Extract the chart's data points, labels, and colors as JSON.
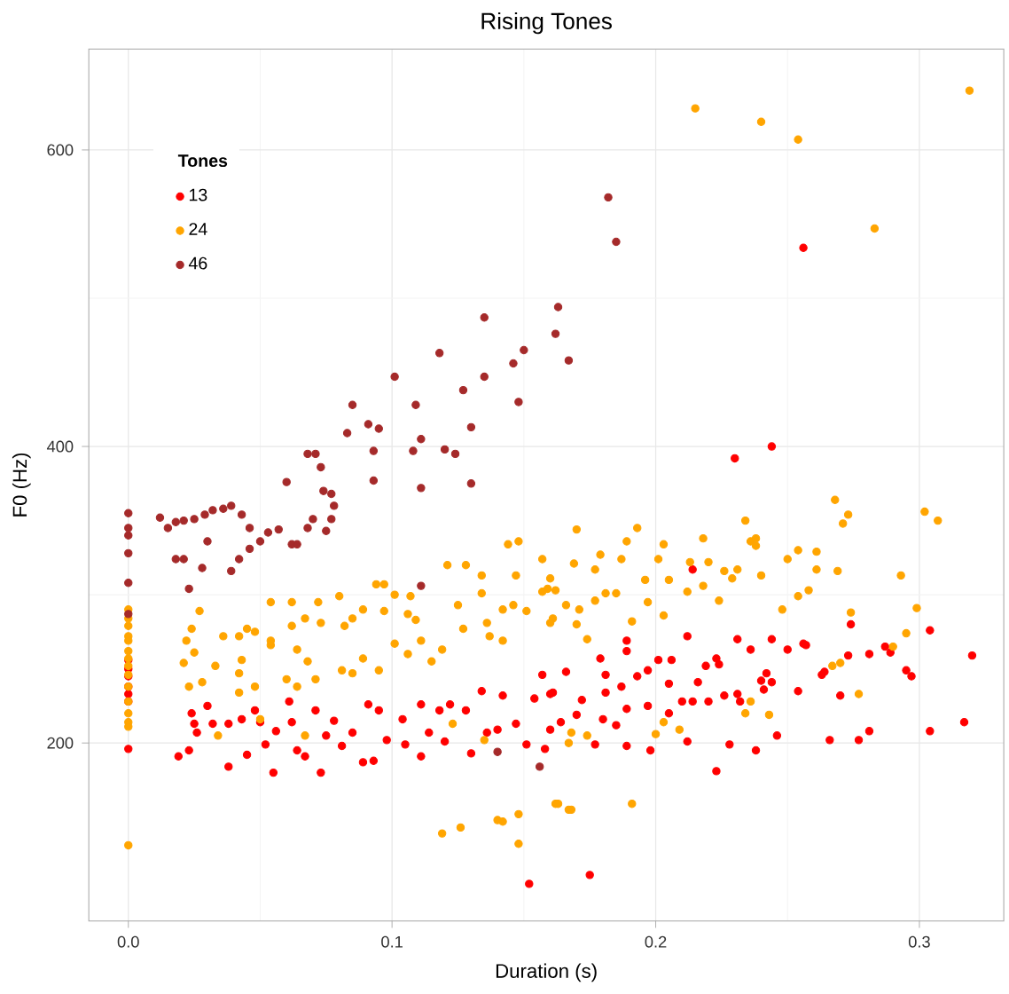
{
  "chart_data": {
    "type": "scatter",
    "title": "Rising Tones",
    "xlabel": "Duration (s)",
    "ylabel": "F0 (Hz)",
    "legend_title": "Tones",
    "legend": "top left",
    "grid": true,
    "marker": "circle",
    "xlim": [
      -0.015,
      0.332
    ],
    "ylim": [
      80,
      668
    ],
    "xticks": [
      {
        "value": 0,
        "label": "0.0"
      },
      0.1,
      0.2,
      0.3
    ],
    "yticks": [
      200,
      400,
      600
    ],
    "series": [
      {
        "name": "13",
        "color": "#ff0000",
        "x": [
          0,
          0,
          0,
          0,
          0,
          0,
          0,
          0.019,
          0.023,
          0.024,
          0.025,
          0.026,
          0.03,
          0.032,
          0.038,
          0.038,
          0.043,
          0.045,
          0.048,
          0.05,
          0.052,
          0.055,
          0.056,
          0.061,
          0.062,
          0.064,
          0.067,
          0.071,
          0.073,
          0.075,
          0.078,
          0.081,
          0.085,
          0.089,
          0.091,
          0.093,
          0.095,
          0.098,
          0.104,
          0.105,
          0.111,
          0.111,
          0.114,
          0.118,
          0.12,
          0.122,
          0.128,
          0.13,
          0.134,
          0.136,
          0.14,
          0.142,
          0.147,
          0.151,
          0.152,
          0.154,
          0.157,
          0.16,
          0.161,
          0.158,
          0.16,
          0.166,
          0.164,
          0.17,
          0.172,
          0.175,
          0.177,
          0.179,
          0.181,
          0.181,
          0.18,
          0.185,
          0.187,
          0.189,
          0.189,
          0.189,
          0.189,
          0.193,
          0.197,
          0.197,
          0.198,
          0.201,
          0.205,
          0.205,
          0.206,
          0.21,
          0.212,
          0.212,
          0.214,
          0.214,
          0.216,
          0.219,
          0.22,
          0.223,
          0.223,
          0.224,
          0.226,
          0.228,
          0.231,
          0.231,
          0.232,
          0.236,
          0.238,
          0.24,
          0.241,
          0.242,
          0.244,
          0.244,
          0.246,
          0.25,
          0.254,
          0.256,
          0.257,
          0.263,
          0.264,
          0.266,
          0.27,
          0.273,
          0.274,
          0.277,
          0.281,
          0.281,
          0.287,
          0.289,
          0.295,
          0.297,
          0.304,
          0.304,
          0.317,
          0.32,
          0.256,
          0.23,
          0.244
        ],
        "values": [
          256,
          250,
          245,
          238,
          233,
          228,
          196,
          191,
          195,
          220,
          213,
          207,
          225,
          213,
          184,
          213,
          216,
          192,
          222,
          214,
          199,
          180,
          208,
          228,
          214,
          195,
          191,
          222,
          180,
          205,
          215,
          198,
          207,
          187,
          226,
          188,
          222,
          202,
          216,
          199,
          191,
          226,
          207,
          222,
          201,
          226,
          222,
          193,
          235,
          207,
          209,
          232,
          213,
          199,
          105,
          230,
          246,
          209,
          234,
          196,
          233,
          248,
          214,
          219,
          229,
          111,
          199,
          257,
          246,
          234,
          216,
          212,
          238,
          269,
          262,
          223,
          198,
          245,
          249,
          225,
          195,
          256,
          240,
          220,
          256,
          228,
          201,
          272,
          317,
          228,
          241,
          252,
          228,
          181,
          257,
          253,
          232,
          199,
          270,
          233,
          228,
          263,
          195,
          242,
          236,
          247,
          270,
          241,
          205,
          263,
          235,
          267,
          266,
          246,
          248,
          202,
          232,
          259,
          280,
          202,
          260,
          208,
          265,
          261,
          249,
          245,
          276,
          208,
          214,
          259,
          534,
          392,
          400
        ]
      },
      {
        "name": "24",
        "color": "#ffa500",
        "x": [
          0,
          0,
          0,
          0,
          0,
          0,
          0,
          0,
          0,
          0,
          0,
          0,
          0,
          0,
          0,
          0.024,
          0.027,
          0.022,
          0.021,
          0.023,
          0.028,
          0.025,
          0.033,
          0.036,
          0.042,
          0.045,
          0.048,
          0.043,
          0.042,
          0.048,
          0.042,
          0.054,
          0.054,
          0.054,
          0.06,
          0.062,
          0.062,
          0.067,
          0.064,
          0.068,
          0.064,
          0.071,
          0.072,
          0.073,
          0.08,
          0.082,
          0.085,
          0.081,
          0.085,
          0.089,
          0.094,
          0.097,
          0.089,
          0.095,
          0.097,
          0.101,
          0.101,
          0.106,
          0.107,
          0.109,
          0.106,
          0.111,
          0.115,
          0.119,
          0.121,
          0.128,
          0.125,
          0.127,
          0.134,
          0.134,
          0.136,
          0.137,
          0.142,
          0.142,
          0.146,
          0.147,
          0.148,
          0.144,
          0.151,
          0.157,
          0.159,
          0.157,
          0.161,
          0.119,
          0.126,
          0.14,
          0.142,
          0.148,
          0.148,
          0.162,
          0.123,
          0.135,
          0.05,
          0.034,
          0.067,
          0.162,
          0.169,
          0.17,
          0.16,
          0.166,
          0.171,
          0.16,
          0.17,
          0.174,
          0.177,
          0.179,
          0.177,
          0.181,
          0.185,
          0.187,
          0.189,
          0.191,
          0.193,
          0.196,
          0.197,
          0.201,
          0.203,
          0.203,
          0.205,
          0.212,
          0.213,
          0.218,
          0.218,
          0.22,
          0.224,
          0.226,
          0.229,
          0.231,
          0.234,
          0.236,
          0.238,
          0.238,
          0.24,
          0.248,
          0.25,
          0.254,
          0.254,
          0.258,
          0.261,
          0.261,
          0.269,
          0.271,
          0.273,
          0.274,
          0.267,
          0.27,
          0.277,
          0.293,
          0.295,
          0.299,
          0.302,
          0.307,
          0.29,
          0.236,
          0.234,
          0.243,
          0.203,
          0.209,
          0.2,
          0.191,
          0.163,
          0.167,
          0.168,
          0.167,
          0.174,
          0.168,
          0.215,
          0.24,
          0.254,
          0.283,
          0.319,
          0.268
        ],
        "values": [
          290,
          284,
          279,
          272,
          269,
          262,
          257,
          252,
          246,
          238,
          228,
          220,
          214,
          211,
          131,
          277,
          289,
          269,
          254,
          238,
          241,
          261,
          252,
          272,
          272,
          277,
          275,
          256,
          247,
          238,
          234,
          295,
          266,
          269,
          243,
          295,
          279,
          284,
          263,
          255,
          238,
          243,
          295,
          281,
          299,
          279,
          284,
          249,
          247,
          257,
          307,
          307,
          290,
          249,
          289,
          267,
          300,
          287,
          299,
          283,
          260,
          269,
          255,
          263,
          320,
          320,
          293,
          277,
          313,
          301,
          281,
          272,
          290,
          269,
          293,
          313,
          336,
          334,
          289,
          324,
          304,
          302,
          284,
          139,
          143,
          148,
          147,
          152,
          132,
          159,
          213,
          202,
          216,
          205,
          205,
          303,
          321,
          344,
          311,
          293,
          290,
          281,
          280,
          270,
          317,
          327,
          296,
          301,
          301,
          324,
          336,
          282,
          345,
          310,
          295,
          324,
          334,
          286,
          310,
          302,
          322,
          338,
          306,
          322,
          296,
          316,
          311,
          317,
          350,
          336,
          338,
          333,
          313,
          290,
          324,
          299,
          330,
          303,
          329,
          317,
          316,
          348,
          354,
          288,
          252,
          254,
          233,
          313,
          274,
          291,
          356,
          350,
          265,
          228,
          220,
          219,
          214,
          209,
          206,
          159,
          159,
          155,
          155,
          200,
          205,
          207,
          628,
          619,
          607,
          547,
          640,
          364
        ]
      },
      {
        "name": "46",
        "color": "#a52a2a",
        "x": [
          0,
          0,
          0,
          0,
          0,
          0,
          0.012,
          0.015,
          0.018,
          0.021,
          0.025,
          0.029,
          0.032,
          0.036,
          0.039,
          0.043,
          0.046,
          0.018,
          0.021,
          0.023,
          0.028,
          0.03,
          0.039,
          0.042,
          0.046,
          0.05,
          0.053,
          0.057,
          0.062,
          0.064,
          0.068,
          0.07,
          0.075,
          0.077,
          0.078,
          0.06,
          0.068,
          0.071,
          0.073,
          0.074,
          0.077,
          0.083,
          0.085,
          0.091,
          0.093,
          0.093,
          0.095,
          0.101,
          0.108,
          0.109,
          0.111,
          0.111,
          0.111,
          0.118,
          0.12,
          0.124,
          0.127,
          0.13,
          0.13,
          0.135,
          0.135,
          0.14,
          0.146,
          0.148,
          0.15,
          0.156,
          0.162,
          0.163,
          0.167,
          0.182,
          0.185
        ],
        "values": [
          355,
          345,
          340,
          328,
          308,
          287,
          352,
          345,
          349,
          350,
          351,
          354,
          357,
          358,
          360,
          354,
          345,
          324,
          324,
          304,
          318,
          336,
          316,
          324,
          331,
          336,
          342,
          344,
          334,
          334,
          345,
          351,
          343,
          351,
          360,
          376,
          395,
          395,
          386,
          370,
          368,
          409,
          428,
          415,
          397,
          377,
          412,
          447,
          397,
          428,
          405,
          372,
          306,
          463,
          398,
          395,
          438,
          413,
          375,
          487,
          447,
          194,
          456,
          430,
          465,
          184,
          476,
          494,
          458,
          568,
          538
        ]
      }
    ]
  }
}
